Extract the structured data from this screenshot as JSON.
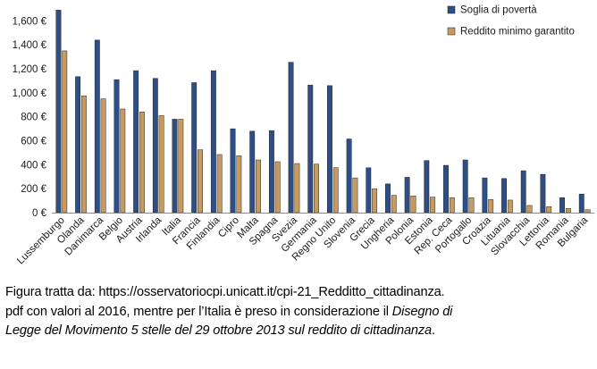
{
  "chart_data": {
    "type": "bar",
    "title": "",
    "xlabel": "",
    "ylabel": "",
    "ylim": [
      0,
      1700
    ],
    "yticks": [
      "0 €",
      "200 €",
      "400 €",
      "600 €",
      "800 €",
      "1,000 €",
      "1,200 €",
      "1,400 €",
      "1,600 €"
    ],
    "ytick_values": [
      0,
      200,
      400,
      600,
      800,
      1000,
      1200,
      1400,
      1600
    ],
    "grid": false,
    "legend_position": "top-right",
    "categories": [
      "Lussemburgo",
      "Olanda",
      "Danimarca",
      "Belgio",
      "Austria",
      "Irlanda",
      "Italia",
      "Francia",
      "Finlandia",
      "Cipro",
      "Malta",
      "Spagna",
      "Svezia",
      "Germania",
      "Regno Unito",
      "Slovenia",
      "Grecia",
      "Ungheria",
      "Polonia",
      "Estonia",
      "Rep. Ceca",
      "Portogallo",
      "Croazia",
      "Lituania",
      "Slovacchia",
      "Lettonia",
      "Romania",
      "Bulgaria"
    ],
    "series": [
      {
        "name": "Soglia di povertà",
        "color": "#2e4f86",
        "values": [
          1690,
          1135,
          1440,
          1110,
          1185,
          1120,
          780,
          1085,
          1185,
          700,
          680,
          685,
          1255,
          1065,
          1060,
          615,
          375,
          240,
          295,
          435,
          395,
          440,
          290,
          285,
          350,
          320,
          125,
          155
        ]
      },
      {
        "name": "Reddito minimo garantito",
        "color": "#c79a62",
        "values": [
          1350,
          975,
          950,
          865,
          840,
          810,
          780,
          525,
          485,
          475,
          440,
          425,
          410,
          405,
          375,
          290,
          200,
          145,
          140,
          130,
          125,
          125,
          110,
          105,
          60,
          50,
          35,
          25
        ]
      }
    ]
  },
  "caption": {
    "line1": "Figura tratta da: https://osservatoriocpi.unicatt.it/cpi-21_Redditto_cittadinanza.",
    "line2_plain": "pdf con valori al 2016, mentre per l’Italia è preso in considerazione il ",
    "line2_italic": "Disegno di",
    "line3_italic": "Legge del Movimento 5 stelle del 29 ottobre 2013 sul reddito di cittadinanza",
    "line3_end": "."
  }
}
